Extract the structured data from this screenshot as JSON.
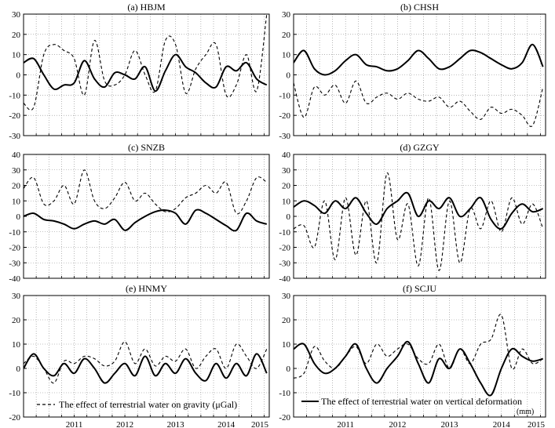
{
  "chart_data": [
    {
      "type": "line",
      "title": "(a) HBJM",
      "ylim": [
        -30,
        30
      ],
      "yticks": [
        -30,
        -20,
        -10,
        0,
        10,
        20,
        30
      ],
      "x": [
        2010.5,
        2010.7,
        2010.9,
        2011.1,
        2011.3,
        2011.5,
        2011.7,
        2011.9,
        2012.1,
        2012.3,
        2012.5,
        2012.7,
        2012.9,
        2013.1,
        2013.3,
        2013.5,
        2013.7,
        2013.9,
        2014.1,
        2014.3,
        2014.5,
        2014.7,
        2014.9,
        2015.1,
        2015.3
      ],
      "series": [
        {
          "name": "gravity",
          "style": "dashed",
          "values": [
            -14,
            -16,
            10,
            15,
            12,
            8,
            -10,
            17,
            -3,
            -5,
            0,
            12,
            0,
            -8,
            17,
            15,
            -9,
            3,
            10,
            15,
            -10,
            -5,
            10,
            -8,
            30
          ]
        },
        {
          "name": "deformation",
          "style": "solid",
          "values": [
            6,
            8,
            0,
            -7,
            -5,
            -4,
            7,
            -2,
            -6,
            1,
            0,
            -2,
            4,
            -8,
            2,
            10,
            4,
            1,
            -4,
            -6,
            4,
            2,
            6,
            -2,
            -5
          ]
        }
      ]
    },
    {
      "type": "line",
      "title": "(b) CHSH",
      "ylim": [
        -30,
        30
      ],
      "yticks": [
        -30,
        -20,
        -10,
        0,
        10,
        20,
        30
      ],
      "x": [
        2010.5,
        2010.7,
        2010.9,
        2011.1,
        2011.3,
        2011.5,
        2011.7,
        2011.9,
        2012.1,
        2012.3,
        2012.5,
        2012.7,
        2012.9,
        2013.1,
        2013.3,
        2013.5,
        2013.7,
        2013.9,
        2014.1,
        2014.3,
        2014.5,
        2014.7,
        2014.9,
        2015.1,
        2015.3
      ],
      "series": [
        {
          "name": "gravity",
          "style": "dashed",
          "values": [
            -4,
            -21,
            -6,
            -10,
            -5,
            -14,
            -3,
            -14,
            -11,
            -9,
            -12,
            -9,
            -12,
            -13,
            -11,
            -16,
            -13,
            -18,
            -22,
            -16,
            -19,
            -17,
            -20,
            -25,
            -6
          ]
        },
        {
          "name": "deformation",
          "style": "solid",
          "values": [
            6,
            12,
            3,
            0,
            2,
            7,
            10,
            5,
            4,
            2,
            3,
            7,
            12,
            8,
            3,
            4,
            8,
            12,
            11,
            8,
            5,
            3,
            6,
            15,
            4
          ]
        }
      ]
    },
    {
      "type": "line",
      "title": "(c) SNZB",
      "ylim": [
        -40,
        40
      ],
      "yticks": [
        -40,
        -30,
        -20,
        -10,
        0,
        10,
        20,
        30,
        40
      ],
      "x": [
        2010.5,
        2010.7,
        2010.9,
        2011.1,
        2011.3,
        2011.5,
        2011.7,
        2011.9,
        2012.1,
        2012.3,
        2012.5,
        2012.7,
        2012.9,
        2013.1,
        2013.3,
        2013.5,
        2013.7,
        2013.9,
        2014.1,
        2014.3,
        2014.5,
        2014.7,
        2014.9,
        2015.1,
        2015.3
      ],
      "series": [
        {
          "name": "gravity",
          "style": "dashed",
          "values": [
            18,
            25,
            8,
            10,
            20,
            8,
            30,
            10,
            5,
            12,
            22,
            10,
            15,
            8,
            3,
            5,
            12,
            15,
            20,
            15,
            22,
            2,
            10,
            25,
            22
          ]
        },
        {
          "name": "deformation",
          "style": "solid",
          "values": [
            0,
            2,
            -2,
            -3,
            -5,
            -8,
            -5,
            -3,
            -5,
            -2,
            -9,
            -4,
            0,
            3,
            4,
            2,
            -5,
            4,
            2,
            -2,
            -6,
            -9,
            2,
            -3,
            -5
          ]
        }
      ]
    },
    {
      "type": "line",
      "title": "(d) GZGY",
      "ylim": [
        -40,
        40
      ],
      "yticks": [
        -40,
        -30,
        -20,
        -10,
        0,
        10,
        20,
        30,
        40
      ],
      "x": [
        2010.5,
        2010.7,
        2010.9,
        2011.1,
        2011.3,
        2011.5,
        2011.7,
        2011.9,
        2012.1,
        2012.3,
        2012.5,
        2012.7,
        2012.9,
        2013.1,
        2013.3,
        2013.5,
        2013.7,
        2013.9,
        2014.1,
        2014.3,
        2014.5,
        2014.7,
        2014.9,
        2015.1,
        2015.3
      ],
      "series": [
        {
          "name": "gravity",
          "style": "dashed",
          "values": [
            -8,
            -6,
            -20,
            10,
            -28,
            12,
            -25,
            10,
            -30,
            28,
            -15,
            8,
            -32,
            12,
            -35,
            10,
            -30,
            5,
            -8,
            10,
            -10,
            12,
            -5,
            8,
            -8
          ]
        },
        {
          "name": "deformation",
          "style": "solid",
          "values": [
            6,
            10,
            7,
            2,
            10,
            5,
            12,
            2,
            -5,
            5,
            10,
            15,
            0,
            10,
            5,
            12,
            0,
            5,
            12,
            -2,
            -8,
            2,
            8,
            3,
            5
          ]
        }
      ]
    },
    {
      "type": "line",
      "title": "(e) HNMY",
      "ylim": [
        -20,
        30
      ],
      "yticks": [
        -20,
        -10,
        0,
        10,
        20,
        30
      ],
      "x": [
        2010.5,
        2010.7,
        2010.9,
        2011.1,
        2011.3,
        2011.5,
        2011.7,
        2011.9,
        2012.1,
        2012.3,
        2012.5,
        2012.7,
        2012.9,
        2013.1,
        2013.3,
        2013.5,
        2013.7,
        2013.9,
        2014.1,
        2014.3,
        2014.5,
        2014.7,
        2014.9,
        2015.1,
        2015.3
      ],
      "series": [
        {
          "name": "gravity",
          "style": "dashed",
          "values": [
            2,
            5,
            0,
            -6,
            3,
            2,
            5,
            4,
            1,
            3,
            11,
            2,
            8,
            1,
            5,
            3,
            8,
            0,
            5,
            8,
            0,
            10,
            5,
            0,
            8
          ]
        },
        {
          "name": "deformation",
          "style": "solid",
          "values": [
            0,
            6,
            0,
            -3,
            2,
            -2,
            4,
            0,
            -6,
            -2,
            2,
            -3,
            5,
            -3,
            2,
            -2,
            4,
            -2,
            -5,
            2,
            -4,
            2,
            -3,
            6,
            -2
          ]
        }
      ]
    },
    {
      "type": "line",
      "title": "(f) SCJU",
      "ylim": [
        -20,
        30
      ],
      "yticks": [
        -20,
        -10,
        0,
        10,
        20,
        30
      ],
      "x": [
        2010.5,
        2010.7,
        2010.9,
        2011.1,
        2011.3,
        2011.5,
        2011.7,
        2011.9,
        2012.1,
        2012.3,
        2012.5,
        2012.7,
        2012.9,
        2013.1,
        2013.3,
        2013.5,
        2013.7,
        2013.9,
        2014.1,
        2014.3,
        2014.5,
        2014.7,
        2014.9,
        2015.1,
        2015.3
      ],
      "series": [
        {
          "name": "gravity",
          "style": "dashed",
          "values": [
            -4,
            -2,
            9,
            3,
            0,
            5,
            9,
            2,
            10,
            5,
            8,
            10,
            4,
            2,
            10,
            0,
            8,
            2,
            10,
            12,
            22,
            0,
            8,
            2,
            4
          ]
        },
        {
          "name": "deformation",
          "style": "solid",
          "values": [
            8,
            10,
            2,
            -2,
            0,
            5,
            10,
            0,
            -6,
            0,
            5,
            11,
            2,
            -6,
            4,
            0,
            8,
            2,
            -6,
            -11,
            0,
            8,
            5,
            3,
            4
          ]
        }
      ]
    }
  ],
  "xaxis": {
    "range": [
      2010.5,
      2015.35
    ],
    "tick_labels": [
      "2011",
      "2012",
      "2013",
      "2014",
      "2015"
    ],
    "tick_values": [
      2011,
      2012,
      2013,
      2014,
      2015
    ]
  },
  "legend": {
    "gravity": "The effect of terrestrial water on gravity (μGal)",
    "deformation": "The effect of terrestrial water on vertical deformation",
    "deformation_unit": "(mm)"
  }
}
